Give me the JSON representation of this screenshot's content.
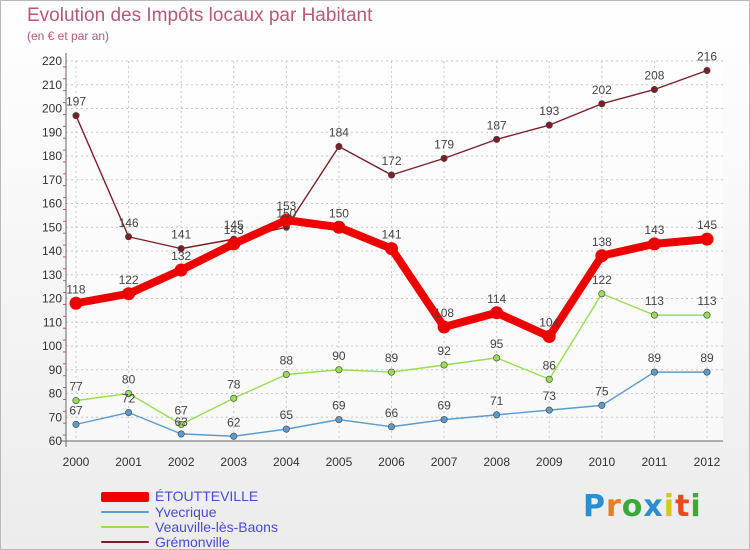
{
  "header": {
    "title": "Evolution des Impôts locaux par Habitant",
    "subtitle": "(en € et par an)"
  },
  "logo": {
    "text": "Proxiti",
    "letter_colors": [
      "#2a8fd0",
      "#e87e1c",
      "#3aa83a",
      "#2a8fd0",
      "#d6c81a",
      "#e84a1c",
      "#3aa83a"
    ]
  },
  "chart_data": {
    "type": "line",
    "x": [
      "2000",
      "2001",
      "2002",
      "2003",
      "2004",
      "2005",
      "2006",
      "2007",
      "2008",
      "2009",
      "2010",
      "2011",
      "2012"
    ],
    "ylim": [
      60,
      220
    ],
    "yticks": [
      60,
      70,
      80,
      90,
      100,
      110,
      120,
      130,
      140,
      150,
      160,
      170,
      180,
      190,
      200,
      210,
      220
    ],
    "grid": true,
    "legend_position": "bottom-left",
    "series": [
      {
        "name": "ÉTOUTTEVILLE",
        "color": "#ee0000",
        "values": [
          118,
          122,
          132,
          143,
          153,
          150,
          141,
          108,
          114,
          104,
          138,
          143,
          145
        ]
      },
      {
        "name": "Yvecrique",
        "color": "#5b9ccc",
        "values": [
          67,
          72,
          63,
          62,
          65,
          69,
          66,
          69,
          71,
          73,
          75,
          89,
          89
        ]
      },
      {
        "name": "Veauville-lès-Baons",
        "color": "#99dd55",
        "values": [
          77,
          80,
          67,
          78,
          88,
          90,
          89,
          92,
          95,
          86,
          122,
          113,
          113
        ]
      },
      {
        "name": "Grémonville",
        "color": "#7a1f2a",
        "values": [
          197,
          146,
          141,
          145,
          150,
          184,
          172,
          179,
          187,
          193,
          202,
          208,
          216
        ]
      }
    ]
  }
}
